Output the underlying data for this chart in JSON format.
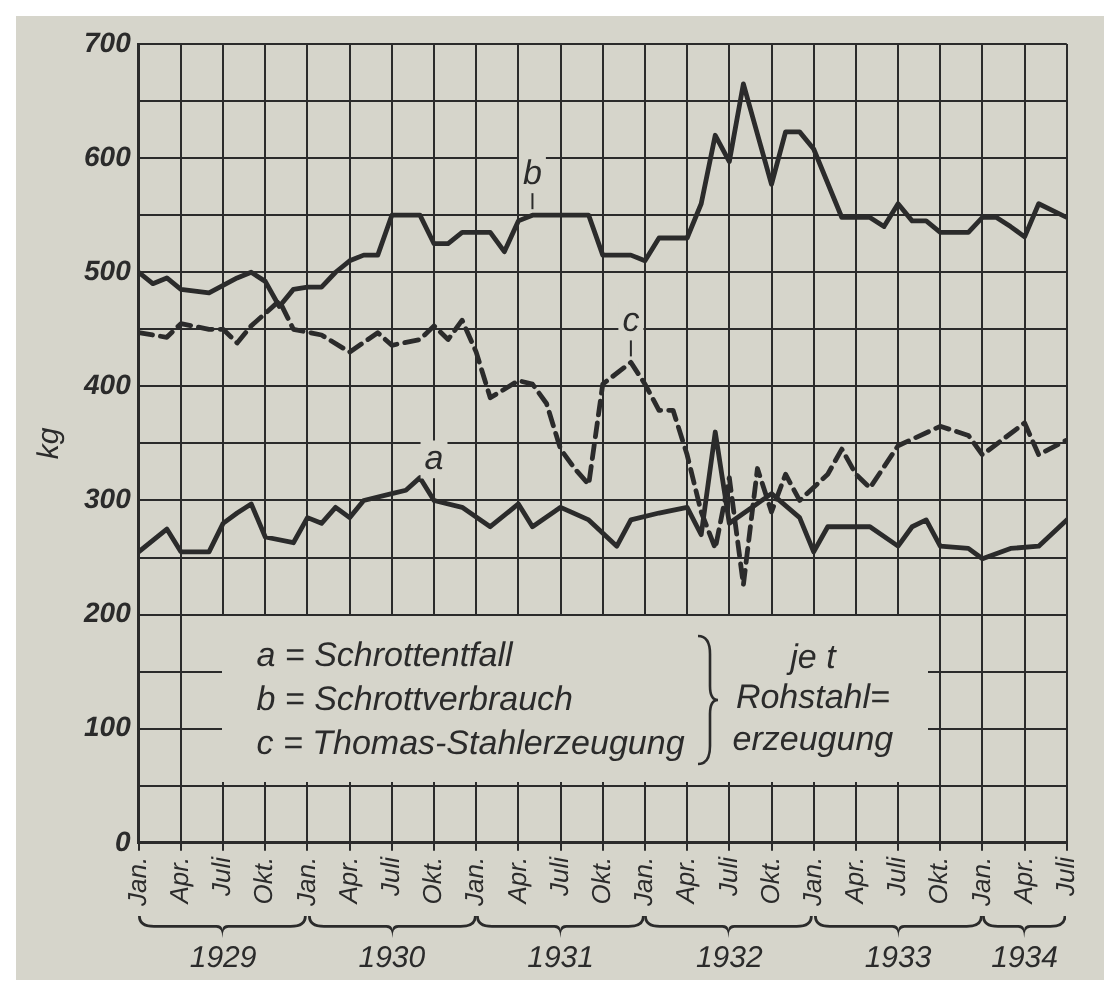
{
  "chart_data": {
    "type": "line",
    "ylabel": "kg",
    "xlim": [
      "1929-01",
      "1934-07"
    ],
    "ylim": [
      0,
      700
    ],
    "xticks": [
      {
        "value": "1929-01",
        "label": "Jan."
      },
      {
        "value": "1929-04",
        "label": "Apr."
      },
      {
        "value": "1929-07",
        "label": "Juli"
      },
      {
        "value": "1929-10",
        "label": "Okt."
      },
      {
        "value": "1930-01",
        "label": "Jan."
      },
      {
        "value": "1930-04",
        "label": "Apr."
      },
      {
        "value": "1930-07",
        "label": "Juli"
      },
      {
        "value": "1930-10",
        "label": "Okt."
      },
      {
        "value": "1931-01",
        "label": "Jan."
      },
      {
        "value": "1931-04",
        "label": "Apr."
      },
      {
        "value": "1931-07",
        "label": "Juli"
      },
      {
        "value": "1931-10",
        "label": "Okt."
      },
      {
        "value": "1932-01",
        "label": "Jan."
      },
      {
        "value": "1932-04",
        "label": "Apr."
      },
      {
        "value": "1932-07",
        "label": "Juli"
      },
      {
        "value": "1932-10",
        "label": "Okt."
      },
      {
        "value": "1933-01",
        "label": "Jan."
      },
      {
        "value": "1933-04",
        "label": "Apr."
      },
      {
        "value": "1933-07",
        "label": "Juli"
      },
      {
        "value": "1933-10",
        "label": "Okt."
      },
      {
        "value": "1934-01",
        "label": "Jan."
      },
      {
        "value": "1934-04",
        "label": "Apr."
      },
      {
        "value": "1934-07",
        "label": "Juli"
      }
    ],
    "yticks": [
      0,
      {
        "value": 50,
        "label": null
      },
      100,
      {
        "value": 150,
        "label": null
      },
      200,
      {
        "value": 250,
        "label": null
      },
      300,
      {
        "value": 350,
        "label": null
      },
      400,
      {
        "value": 450,
        "label": null
      },
      500,
      {
        "value": 550,
        "label": null
      },
      600,
      {
        "value": 650,
        "label": null
      },
      700
    ],
    "grid": true,
    "legend": false,
    "marker": "none",
    "series": [
      {
        "color": "#2b2b2b",
        "line_style": "solid",
        "x": [
          "1929-01",
          "1929-03",
          "1929-04",
          "1929-06",
          "1929-07",
          "1929-08",
          "1929-09",
          "1929-10",
          "1929-12",
          "1930-01",
          "1930-02",
          "1930-03",
          "1930-04",
          "1930-05",
          "1930-07",
          "1930-08",
          "1930-09",
          "1930-10",
          "1930-12",
          "1931-02",
          "1931-04",
          "1931-05",
          "1931-07",
          "1931-09",
          "1931-11",
          "1931-12",
          "1932-02",
          "1932-04",
          "1932-05",
          "1932-06",
          "1932-07",
          "1932-10",
          "1932-12",
          "1933-01",
          "1933-02",
          "1933-05",
          "1933-07",
          "1933-08",
          "1933-09",
          "1933-10",
          "1933-12",
          "1934-01",
          "1934-03",
          "1934-05",
          "1934-07"
        ],
        "values": [
          255,
          275,
          255,
          255,
          280,
          289,
          297,
          268,
          263,
          285,
          280,
          294,
          285,
          300,
          306,
          309,
          320,
          300,
          294,
          277,
          297,
          277,
          294,
          283,
          260,
          283,
          289,
          294,
          270,
          360,
          280,
          306,
          285,
          255,
          277,
          277,
          260,
          277,
          283,
          260,
          258,
          249,
          258,
          260,
          283
        ]
      },
      {
        "color": "#2b2b2b",
        "line_style": "solid",
        "x": [
          "1929-01",
          "1929-02",
          "1929-03",
          "1929-04",
          "1929-06",
          "1929-08",
          "1929-09",
          "1929-10",
          "1929-11",
          "1929-12",
          "1930-01",
          "1930-02",
          "1930-03",
          "1930-04",
          "1930-05",
          "1930-06",
          "1930-07",
          "1930-09",
          "1930-10",
          "1930-11",
          "1930-12",
          "1931-02",
          "1931-03",
          "1931-04",
          "1931-05",
          "1931-09",
          "1931-10",
          "1931-12",
          "1932-01",
          "1932-02",
          "1932-04",
          "1932-05",
          "1932-06",
          "1932-07",
          "1932-08",
          "1932-10",
          "1932-11",
          "1932-12",
          "1933-01",
          "1933-03",
          "1933-05",
          "1933-06",
          "1933-07",
          "1933-08",
          "1933-09",
          "1933-10",
          "1933-12",
          "1934-01",
          "1934-02",
          "1934-03",
          "1934-04",
          "1934-05",
          "1934-07"
        ],
        "values": [
          500,
          490,
          495,
          485,
          482,
          495,
          500,
          492,
          470,
          485,
          487,
          487,
          500,
          510,
          515,
          515,
          550,
          550,
          525,
          525,
          535,
          535,
          518,
          545,
          550,
          550,
          515,
          515,
          510,
          530,
          530,
          560,
          620,
          597,
          665,
          577,
          623,
          623,
          608,
          548,
          548,
          540,
          560,
          545,
          545,
          535,
          535,
          548,
          548,
          540,
          531,
          560,
          548
        ]
      },
      {
        "color": "#2b2b2b",
        "line_style": "dashed",
        "x": [
          "1929-01",
          "1929-03",
          "1929-04",
          "1929-06",
          "1929-07",
          "1929-08",
          "1929-09",
          "1929-11",
          "1929-12",
          "1930-02",
          "1930-04",
          "1930-06",
          "1930-07",
          "1930-09",
          "1930-10",
          "1930-11",
          "1930-12",
          "1931-01",
          "1931-02",
          "1931-04",
          "1931-05",
          "1931-06",
          "1931-07",
          "1931-08",
          "1931-09",
          "1931-10",
          "1931-12",
          "1932-01",
          "1932-02",
          "1932-03",
          "1932-04",
          "1932-05",
          "1932-06",
          "1932-07",
          "1932-08",
          "1932-09",
          "1932-10",
          "1932-11",
          "1932-12",
          "1933-02",
          "1933-03",
          "1933-04",
          "1933-05",
          "1933-07",
          "1933-10",
          "1933-12",
          "1934-01",
          "1934-04",
          "1934-05",
          "1934-07"
        ],
        "values": [
          447,
          443,
          455,
          450,
          450,
          438,
          453,
          475,
          450,
          445,
          430,
          447,
          436,
          441,
          453,
          441,
          458,
          430,
          390,
          405,
          402,
          385,
          345,
          328,
          314,
          402,
          421,
          402,
          379,
          379,
          340,
          290,
          258,
          320,
          226,
          328,
          290,
          323,
          300,
          323,
          345,
          323,
          311,
          348,
          365,
          357,
          340,
          368,
          340,
          353
        ]
      }
    ],
    "annotations": [
      "a = Schrottentfall",
      "b = Schrottverbrauch",
      "c = Thomas-Stahlerzeugung",
      "je t\nRohstahl=\nerzeugung",
      {
        "text": "a",
        "x": "1930-10",
        "y": 300
      },
      {
        "text": "b",
        "x": "1931-05",
        "y": 550
      },
      {
        "text": "c",
        "x": "1931-12",
        "y": 421
      },
      "1929",
      "1930",
      "1931",
      "1932",
      "1933",
      "1934"
    ]
  }
}
